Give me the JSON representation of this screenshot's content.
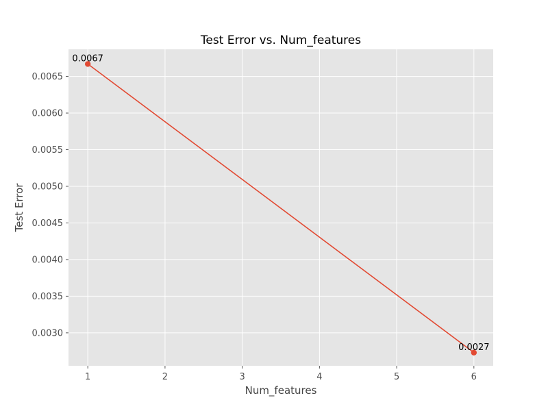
{
  "chart_data": {
    "type": "line",
    "title": "Test Error vs. Num_features",
    "xlabel": "Num_features",
    "ylabel": "Test Error",
    "xlim": [
      0.75,
      6.25
    ],
    "ylim": [
      0.00255,
      0.00687
    ],
    "grid": true,
    "legend": "none",
    "colors": {
      "line": "#E24A33",
      "background": "#E5E5E5"
    },
    "x_ticks": [
      1,
      2,
      3,
      4,
      5,
      6
    ],
    "x_tick_labels": [
      "1",
      "2",
      "3",
      "4",
      "5",
      "6"
    ],
    "y_ticks": [
      0.003,
      0.0035,
      0.004,
      0.0045,
      0.005,
      0.0055,
      0.006,
      0.0065
    ],
    "y_tick_labels": [
      "0.0030",
      "0.0035",
      "0.0040",
      "0.0045",
      "0.0050",
      "0.0055",
      "0.0060",
      "0.0065"
    ],
    "series": [
      {
        "x": [
          1,
          6
        ],
        "y": [
          0.00667,
          0.00273
        ],
        "labels": [
          "0.0067",
          "0.0027"
        ]
      }
    ]
  }
}
